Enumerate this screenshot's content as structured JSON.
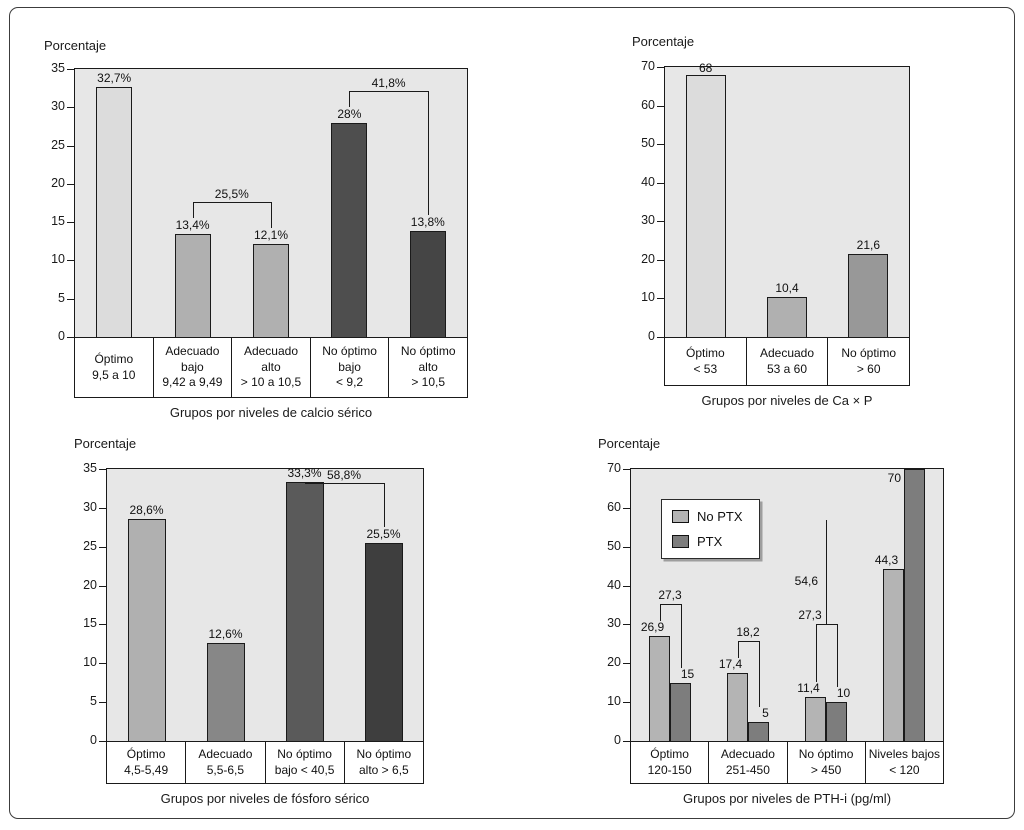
{
  "figure": {
    "background": "#ffffff",
    "frame_border_color": "#3c3c3c"
  },
  "chart_data": [
    {
      "type": "bar",
      "ylabel": "Porcentaje",
      "xlabel": "Grupos por niveles de calcio sérico",
      "ylim": [
        0,
        35
      ],
      "yticks": [
        0,
        5,
        10,
        15,
        20,
        25,
        30,
        35
      ],
      "plot_bg": "#e7e7e7",
      "categories": [
        "Óptimo\n9,5 a 10",
        "Adecuado\nbajo\n9,42 a 9,49",
        "Adecuado\nalto\n> 10 a 10,5",
        "No óptimo\nbajo\n< 9,2",
        "No óptimo\nalto\n> 10,5"
      ],
      "values": [
        32.7,
        13.4,
        12.1,
        28,
        13.8
      ],
      "value_labels": [
        "32,7%",
        "13,4%",
        "12,1%",
        "28%",
        "13,8%"
      ],
      "bar_colors": [
        "#dcdcdc",
        "#b0b0b0",
        "#b0b0b0",
        "#4e4e4e",
        "#454545"
      ],
      "brackets": [
        {
          "from": 1,
          "to": 2,
          "label": "25,5%"
        },
        {
          "from": 3,
          "to": 4,
          "label": "41,8%"
        }
      ]
    },
    {
      "type": "bar",
      "ylabel": "Porcentaje",
      "xlabel": "Grupos por niveles de Ca × P",
      "ylim": [
        0,
        70
      ],
      "yticks": [
        0,
        10,
        20,
        30,
        40,
        50,
        60,
        70
      ],
      "plot_bg": "#e7e7e7",
      "categories": [
        "Óptimo\n< 53",
        "Adecuado\n53 a 60",
        "No óptimo\n> 60"
      ],
      "values": [
        68,
        10.4,
        21.6
      ],
      "value_labels": [
        "68",
        "10,4",
        "21,6"
      ],
      "bar_colors": [
        "#dcdcdc",
        "#b0b0b0",
        "#989898"
      ],
      "brackets": []
    },
    {
      "type": "bar",
      "ylabel": "Porcentaje",
      "xlabel": "Grupos por niveles de fósforo sérico",
      "ylim": [
        0,
        35
      ],
      "yticks": [
        0,
        5,
        10,
        15,
        20,
        25,
        30,
        35
      ],
      "plot_bg": "#e7e7e7",
      "categories": [
        "Óptimo\n4,5-5,49",
        "Adecuado\n5,5-6,5",
        "No óptimo\nbajo < 40,5",
        "No óptimo\nalto > 6,5"
      ],
      "values": [
        28.6,
        12.6,
        33.3,
        25.5
      ],
      "value_labels": [
        "28,6%",
        "12,6%",
        "33,3%",
        "25,5%"
      ],
      "bar_colors": [
        "#b0b0b0",
        "#878787",
        "#5a5a5a",
        "#3e3e3e"
      ],
      "brackets": [
        {
          "from": 2,
          "to": 3,
          "label": "58,8%"
        }
      ]
    },
    {
      "type": "grouped-bar",
      "ylabel": "Porcentaje",
      "xlabel": "Grupos por niveles de PTH-i (pg/ml)",
      "ylim": [
        0,
        70
      ],
      "yticks": [
        0,
        10,
        20,
        30,
        40,
        50,
        60,
        70
      ],
      "plot_bg": "#e7e7e7",
      "categories": [
        "Óptimo\n120-150",
        "Adecuado\n251-450",
        "No óptimo\n> 450",
        "Niveles bajos\n< 120"
      ],
      "legend": [
        "No PTX",
        "PTX"
      ],
      "series": [
        {
          "name": "No PTX",
          "color": "#b4b4b4",
          "values": [
            26.9,
            17.4,
            11.4,
            44.3
          ],
          "value_labels": [
            "26,9",
            "17,4",
            "11,4",
            "44,3"
          ]
        },
        {
          "name": "PTX",
          "color": "#7d7d7d",
          "values": [
            15,
            5,
            10,
            70
          ],
          "value_labels": [
            "15",
            "5",
            "10",
            "70"
          ]
        }
      ],
      "group_brackets": [
        {
          "group": 0,
          "label": "27,3"
        },
        {
          "group": 1,
          "label": "18,2"
        },
        {
          "group": 2,
          "label": "27,3",
          "line_value": 30,
          "label_dx": -16
        }
      ],
      "annotations": [
        {
          "type": "tall-line",
          "group": 2,
          "label": "54,6",
          "top_value": 57,
          "label_value": 41
        }
      ]
    }
  ]
}
